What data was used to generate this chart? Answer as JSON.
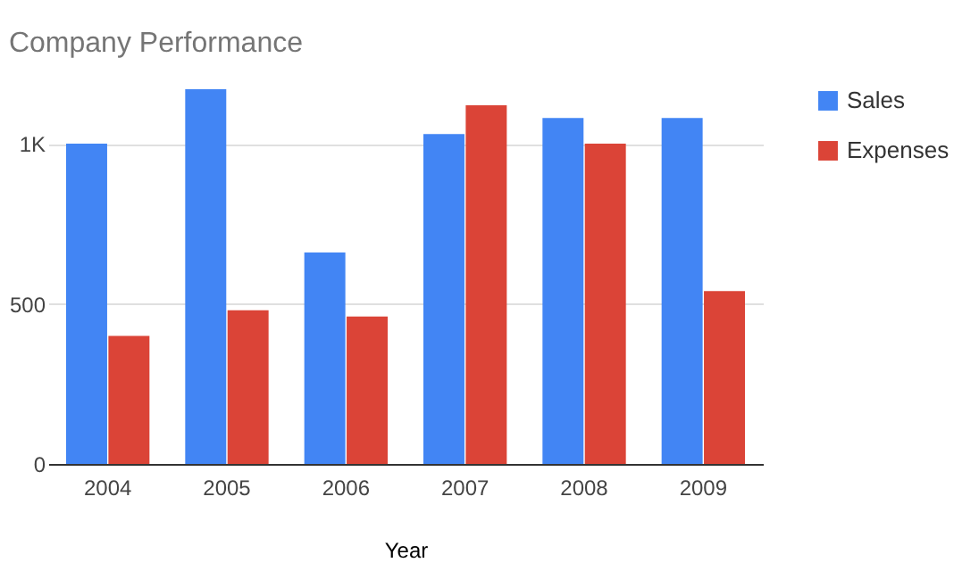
{
  "chart_data": {
    "type": "bar",
    "title": "Company Performance",
    "xlabel": "Year",
    "categories": [
      "2004",
      "2005",
      "2006",
      "2007",
      "2008",
      "2009"
    ],
    "series": [
      {
        "name": "Sales",
        "color": "#4285f4",
        "values": [
          1000,
          1170,
          660,
          1030,
          1080,
          1080
        ]
      },
      {
        "name": "Expenses",
        "color": "#db4437",
        "values": [
          400,
          480,
          460,
          1120,
          1000,
          540
        ]
      }
    ],
    "ylim": [
      0,
      1170
    ],
    "yticks": [
      0,
      500,
      {
        "value": 1000,
        "label": "1K"
      }
    ],
    "grid": "y",
    "legend": "top right"
  }
}
